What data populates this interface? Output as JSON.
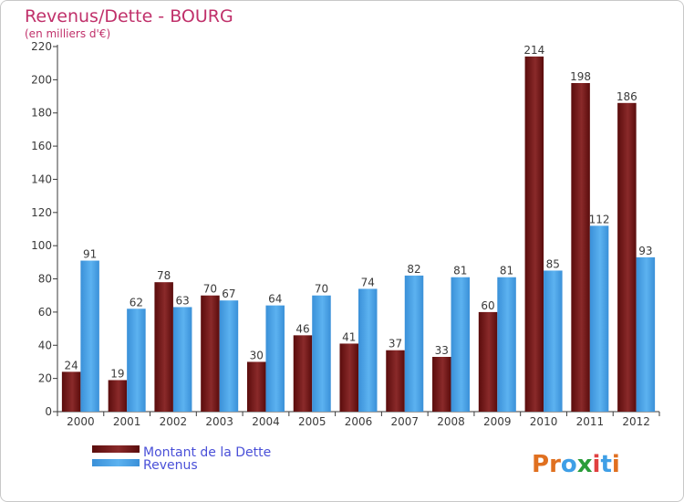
{
  "chart_data": {
    "type": "bar",
    "title": "Revenus/Dette - BOURG",
    "subtitle": "(en milliers d'€)",
    "categories": [
      "2000",
      "2001",
      "2002",
      "2003",
      "2004",
      "2005",
      "2006",
      "2007",
      "2008",
      "2009",
      "2010",
      "2011",
      "2012"
    ],
    "series": [
      {
        "name": "Montant de la Dette",
        "color": "#6e1414",
        "values": [
          24,
          19,
          78,
          70,
          30,
          46,
          41,
          37,
          33,
          60,
          214,
          198,
          186
        ]
      },
      {
        "name": "Revenus",
        "color": "#3f9fe6",
        "values": [
          91,
          62,
          63,
          67,
          64,
          70,
          74,
          82,
          81,
          81,
          85,
          112,
          93
        ]
      }
    ],
    "ylim": [
      0,
      220
    ],
    "yticks": [
      "0",
      "20",
      "40",
      "60",
      "80",
      "100",
      "120",
      "140",
      "160",
      "180",
      "200",
      "220"
    ],
    "grid": false,
    "legend_position": "bottom-left"
  },
  "colors": {
    "title": "#c0306a",
    "legend_text": "#4a50d8",
    "axis": "#3a3a3a"
  },
  "logo": {
    "text": "Proxiti",
    "letter_colors": [
      "#e07020",
      "#e07020",
      "#3f9fe6",
      "#2a9d3a",
      "#e04040",
      "#3f9fe6",
      "#e07020"
    ]
  }
}
